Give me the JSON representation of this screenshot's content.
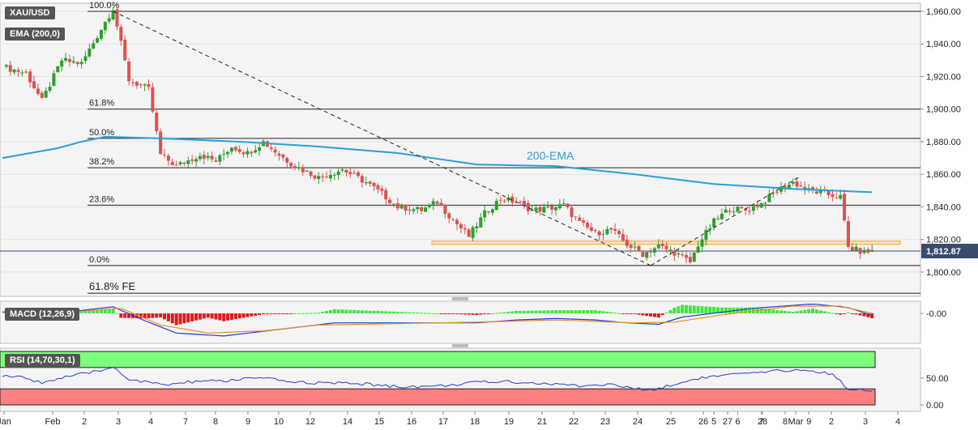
{
  "symbol": "XAU/USD",
  "indicator_label": "EMA (200,0)",
  "macd_label": "MACD (12,26,9)",
  "rsi_label": "RSI (14,70,30,1)",
  "ema_annotation": "200-EMA",
  "current_price_label": "1,812.87",
  "colors": {
    "up": "#2ca02c",
    "down": "#d9534f",
    "ema": "#2a9fd6",
    "macd": "#1f3fcf",
    "signal": "#f08a24",
    "rsi": "#1f3fcf",
    "rsi_overbought": "#7dfc7d",
    "rsi_oversold": "#ff8080",
    "support_zone": "#f5b041"
  },
  "chart_data": [
    {
      "type": "candlestick",
      "x_ticks": [
        "Jan",
        "Feb",
        "2",
        "3",
        "4",
        "7",
        "8",
        "9",
        "10",
        "12",
        "14",
        "15",
        "16",
        "17",
        "18",
        "19",
        "21",
        "22",
        "23",
        "24",
        "25",
        "26",
        "27",
        "28",
        "Mar",
        "2",
        "3",
        "4",
        "5",
        "6",
        "7",
        "8",
        "9"
      ],
      "y_ticks": [
        "1,800.00",
        "1,820.00",
        "1,840.00",
        "1,860.00",
        "1,880.00",
        "1,900.00",
        "1,920.00",
        "1,940.00",
        "1,960.00"
      ],
      "ylim": [
        1786,
        1964
      ],
      "series_name": "XAU/USD",
      "ohlc_count": 196,
      "price_anchors": [
        [
          0,
          1926
        ],
        [
          6,
          1922
        ],
        [
          10,
          1905
        ],
        [
          15,
          1930
        ],
        [
          20,
          1928
        ],
        [
          24,
          1945
        ],
        [
          28,
          1962
        ],
        [
          32,
          1918
        ],
        [
          37,
          1912
        ],
        [
          40,
          1872
        ],
        [
          44,
          1865
        ],
        [
          50,
          1872
        ],
        [
          54,
          1868
        ],
        [
          58,
          1877
        ],
        [
          62,
          1873
        ],
        [
          66,
          1880
        ],
        [
          70,
          1872
        ],
        [
          74,
          1865
        ],
        [
          80,
          1858
        ],
        [
          86,
          1863
        ],
        [
          92,
          1855
        ],
        [
          96,
          1848
        ],
        [
          100,
          1840
        ],
        [
          106,
          1838
        ],
        [
          110,
          1843
        ],
        [
          114,
          1832
        ],
        [
          118,
          1822
        ],
        [
          122,
          1836
        ],
        [
          126,
          1845
        ],
        [
          130,
          1843
        ],
        [
          134,
          1838
        ],
        [
          138,
          1839
        ],
        [
          142,
          1841
        ],
        [
          146,
          1830
        ],
        [
          150,
          1824
        ],
        [
          154,
          1826
        ],
        [
          158,
          1817
        ],
        [
          162,
          1811
        ],
        [
          166,
          1816
        ],
        [
          170,
          1812
        ],
        [
          174,
          1806
        ],
        [
          176,
          1817
        ],
        [
          180,
          1831
        ],
        [
          184,
          1839
        ],
        [
          188,
          1838
        ],
        [
          192,
          1842
        ],
        [
          196,
          1850
        ],
        [
          200,
          1855
        ],
        [
          204,
          1850
        ],
        [
          208,
          1848
        ],
        [
          212,
          1846
        ],
        [
          214,
          1815
        ],
        [
          218,
          1812
        ],
        [
          220,
          1813
        ]
      ],
      "ema_200": [
        [
          0,
          1870
        ],
        [
          14,
          1876
        ],
        [
          20,
          1880
        ],
        [
          26,
          1883
        ],
        [
          40,
          1882
        ],
        [
          60,
          1880
        ],
        [
          80,
          1877
        ],
        [
          100,
          1873
        ],
        [
          120,
          1866
        ],
        [
          140,
          1865
        ],
        [
          160,
          1860
        ],
        [
          180,
          1854
        ],
        [
          200,
          1851
        ],
        [
          220,
          1849
        ]
      ],
      "fibonacci": [
        {
          "label": "100.0%",
          "price": 1960
        },
        {
          "label": "61.8%",
          "price": 1900
        },
        {
          "label": "50.0%",
          "price": 1882
        },
        {
          "label": "38.2%",
          "price": 1864
        },
        {
          "label": "23.6%",
          "price": 1841
        },
        {
          "label": "0.0%",
          "price": 1804
        },
        {
          "label": "61.8% FE",
          "price": 1787
        }
      ],
      "current_price": 1812.87,
      "support_zone": [
        1817,
        1819
      ],
      "trendlines": [
        {
          "style": "dashed",
          "from": [
            28,
            1960
          ],
          "to": [
            164,
            1804
          ]
        },
        {
          "style": "dashed",
          "from": [
            164,
            1804
          ],
          "to": [
            202,
            1859
          ]
        }
      ]
    },
    {
      "type": "histogram+line",
      "name": "MACD (12,26,9)",
      "y_ticks": [
        "-0.00"
      ],
      "macd_line": [
        [
          0,
          2
        ],
        [
          20,
          4
        ],
        [
          28,
          9
        ],
        [
          36,
          -10
        ],
        [
          44,
          -27
        ],
        [
          56,
          -31
        ],
        [
          70,
          -22
        ],
        [
          84,
          -13
        ],
        [
          100,
          -13
        ],
        [
          120,
          -13
        ],
        [
          130,
          -9
        ],
        [
          140,
          -7
        ],
        [
          150,
          -9
        ],
        [
          158,
          -13
        ],
        [
          166,
          -15
        ],
        [
          172,
          -5
        ],
        [
          190,
          7
        ],
        [
          205,
          13
        ],
        [
          214,
          8
        ],
        [
          220,
          -3
        ]
      ],
      "signal_line": [
        [
          0,
          1
        ],
        [
          20,
          3
        ],
        [
          30,
          7
        ],
        [
          40,
          -16
        ],
        [
          52,
          -27
        ],
        [
          66,
          -24
        ],
        [
          80,
          -16
        ],
        [
          100,
          -14
        ],
        [
          120,
          -12
        ],
        [
          140,
          -9
        ],
        [
          160,
          -13
        ],
        [
          170,
          -12
        ],
        [
          182,
          -2
        ],
        [
          200,
          10
        ],
        [
          212,
          10
        ],
        [
          220,
          0
        ]
      ]
    },
    {
      "type": "line",
      "name": "RSI (14,70,30,1)",
      "y_ticks": [
        "0.00",
        "50.00"
      ],
      "overbought_zone": [
        70,
        100
      ],
      "oversold_zone": [
        0,
        30
      ],
      "rsi": [
        [
          0,
          55
        ],
        [
          6,
          50
        ],
        [
          10,
          42
        ],
        [
          16,
          52
        ],
        [
          22,
          60
        ],
        [
          26,
          66
        ],
        [
          28,
          72
        ],
        [
          32,
          48
        ],
        [
          38,
          40
        ],
        [
          42,
          38
        ],
        [
          50,
          45
        ],
        [
          56,
          44
        ],
        [
          62,
          50
        ],
        [
          66,
          49
        ],
        [
          74,
          43
        ],
        [
          80,
          41
        ],
        [
          90,
          40
        ],
        [
          100,
          34
        ],
        [
          110,
          35
        ],
        [
          120,
          42
        ],
        [
          128,
          44
        ],
        [
          136,
          40
        ],
        [
          146,
          36
        ],
        [
          154,
          38
        ],
        [
          160,
          30
        ],
        [
          164,
          28
        ],
        [
          170,
          38
        ],
        [
          176,
          50
        ],
        [
          184,
          56
        ],
        [
          192,
          60
        ],
        [
          200,
          66
        ],
        [
          206,
          62
        ],
        [
          210,
          58
        ],
        [
          214,
          30
        ],
        [
          220,
          28
        ]
      ]
    }
  ]
}
